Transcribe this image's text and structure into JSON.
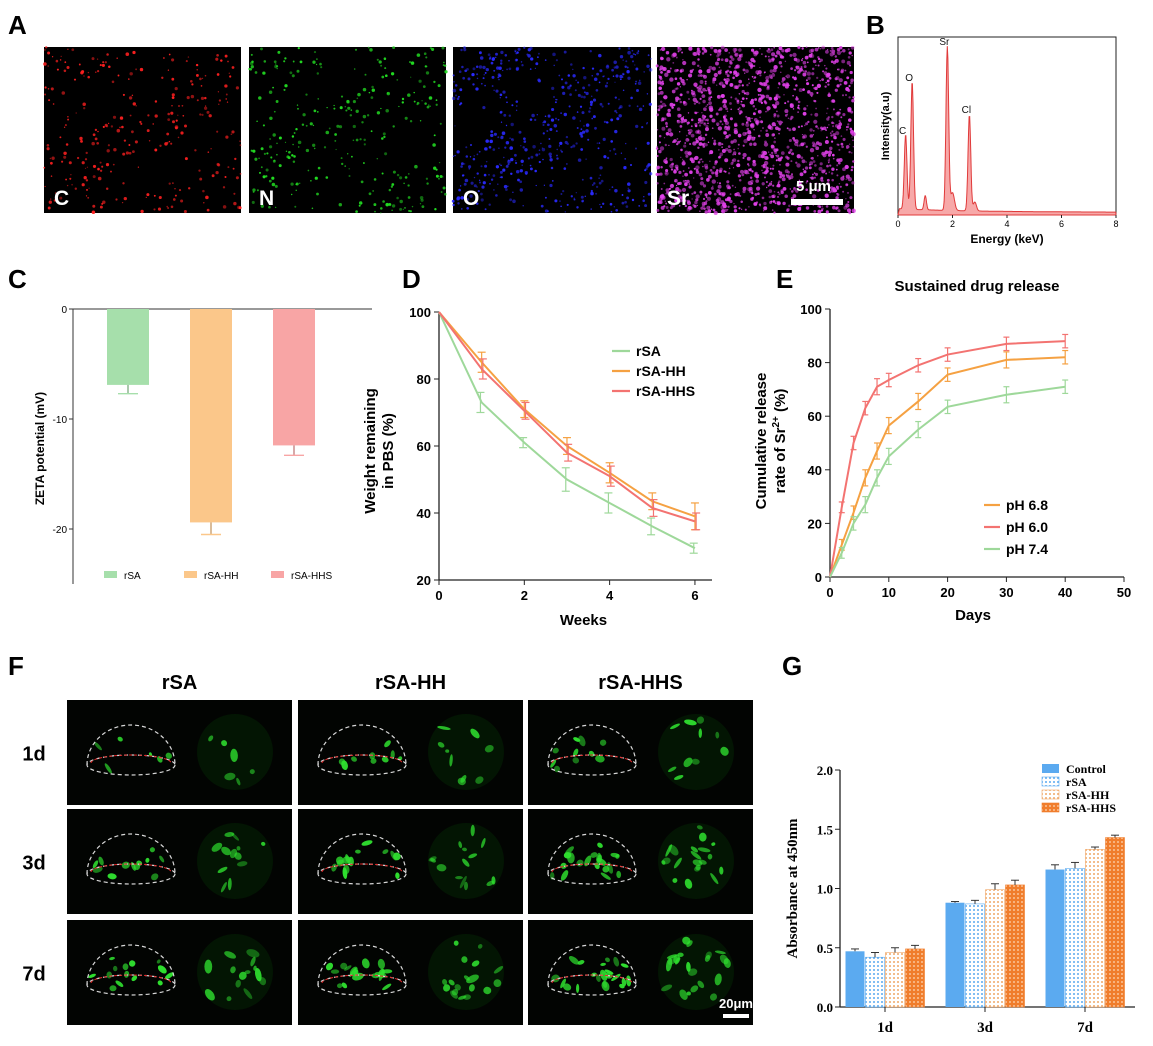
{
  "panels": {
    "a": {
      "letter": "A",
      "elements": [
        "C",
        "N",
        "O",
        "Sr"
      ],
      "element_colors": [
        "#ff2020",
        "#22dd22",
        "#2a2aff",
        "#e040e8"
      ],
      "scale_bar": "5 μm"
    },
    "f": {
      "letter": "F",
      "columns": [
        "rSA",
        "rSA-HH",
        "rSA-HHS"
      ],
      "rows": [
        "1d",
        "3d",
        "7d"
      ],
      "scale_bar": "20μm"
    }
  },
  "chart_data": [
    {
      "id": "B",
      "type": "line",
      "title": "",
      "xlabel": "Energy (keV)",
      "ylabel": "Intensity(a.u)",
      "xlim": [
        0,
        8
      ],
      "xticks": [
        0,
        2,
        4,
        6,
        8
      ],
      "color": "#e03a3a",
      "peaks": [
        {
          "label": "C",
          "x": 0.28,
          "y": 0.42
        },
        {
          "label": "O",
          "x": 0.52,
          "y": 0.72
        },
        {
          "label": "Sr",
          "x": 1.81,
          "y": 0.92
        },
        {
          "label": "Cl",
          "x": 2.62,
          "y": 0.54
        }
      ]
    },
    {
      "id": "C",
      "type": "bar",
      "title": "",
      "xlabel": "",
      "ylabel": "ZETA potential (mV)",
      "ylim": [
        -25,
        0
      ],
      "yticks": [
        0,
        -10,
        -20
      ],
      "categories": [
        "rSA",
        "rSA-HH",
        "rSA-HHS"
      ],
      "values": [
        -6.9,
        -19.4,
        -12.4
      ],
      "errors": [
        0.8,
        1.1,
        0.9
      ],
      "colors": [
        "#a6dfab",
        "#fbc78a",
        "#f8a5a5"
      ],
      "legend": [
        "rSA",
        "rSA-HH",
        "rSA-HHS"
      ]
    },
    {
      "id": "D",
      "type": "line",
      "title": "",
      "xlabel": "Weeks",
      "ylabel": "Weight remaining in PBS (%)",
      "ylabel_lines": [
        "Weight remaining",
        "in PBS (%)"
      ],
      "xlim": [
        0,
        6.4
      ],
      "ylim": [
        20,
        100
      ],
      "xticks": [
        0,
        2,
        4,
        6
      ],
      "yticks": [
        20,
        40,
        60,
        80,
        100
      ],
      "x": [
        0,
        1,
        2,
        3,
        4,
        5,
        6
      ],
      "series": [
        {
          "name": "rSA",
          "color": "#9ed89a",
          "values": [
            100,
            73,
            61,
            50,
            43,
            36,
            29.5
          ],
          "errors": [
            0,
            3,
            1.5,
            3.5,
            3,
            2.5,
            1.5
          ]
        },
        {
          "name": "rSA-HH",
          "color": "#f5a142",
          "values": [
            100,
            85,
            71,
            60,
            52,
            43.5,
            39
          ],
          "errors": [
            0,
            3,
            2.5,
            2.5,
            3,
            2.5,
            4
          ]
        },
        {
          "name": "rSA-HHS",
          "color": "#f37371",
          "values": [
            100,
            83,
            70.5,
            58,
            51,
            41.5,
            37.5
          ],
          "errors": [
            0,
            3,
            2.5,
            2.5,
            3,
            2.5,
            2.5
          ]
        }
      ],
      "legend_position": "top-right"
    },
    {
      "id": "E",
      "type": "line",
      "title": "Sustained drug release",
      "xlabel": "Days",
      "ylabel": "Cumulative release rate of Sr2+ (%)",
      "ylabel_line1": "Cumulative release",
      "ylabel_line2_pre": "rate of Sr",
      "ylabel_sup": "2+",
      "ylabel_line2_post": " (%)",
      "xlim": [
        0,
        50
      ],
      "ylim": [
        0,
        100
      ],
      "xticks": [
        0,
        10,
        20,
        30,
        40,
        50
      ],
      "yticks": [
        0,
        20,
        40,
        60,
        80,
        100
      ],
      "x": [
        0,
        2,
        4,
        6,
        8,
        10,
        15,
        20,
        30,
        40
      ],
      "series": [
        {
          "name": "pH 6.8",
          "color": "#f5a142",
          "values": [
            0,
            12,
            24,
            37,
            47,
            56.5,
            65.5,
            75.5,
            81,
            82
          ],
          "errors": [
            0,
            2,
            2.5,
            3,
            3,
            3,
            3,
            2.5,
            3,
            2.5
          ]
        },
        {
          "name": "pH 6.0",
          "color": "#f37371",
          "values": [
            0,
            26,
            50,
            63,
            71,
            73.5,
            79,
            83,
            87,
            88
          ],
          "errors": [
            0,
            2,
            2.5,
            2.5,
            3,
            2.5,
            2.5,
            2.5,
            2.5,
            2.5
          ]
        },
        {
          "name": "pH 7.4",
          "color": "#9ed89a",
          "values": [
            0,
            9,
            20,
            27,
            37,
            45,
            55,
            63.5,
            68,
            71
          ],
          "errors": [
            0,
            2,
            2.5,
            3,
            3,
            3,
            3,
            2.5,
            3,
            2.5
          ]
        }
      ],
      "legend_position": "bottom-right"
    },
    {
      "id": "G",
      "type": "bar",
      "title": "",
      "xlabel": "",
      "ylabel": "Absorbance at 450nm",
      "ylim": [
        0,
        2.0
      ],
      "yticks": [
        "0.0",
        "0.5",
        "1.0",
        "1.5",
        "2.0"
      ],
      "categories": [
        "1d",
        "3d",
        "7d"
      ],
      "series": [
        {
          "name": "Control",
          "color": "#5baaf0",
          "pattern": "solid",
          "values": [
            0.47,
            0.88,
            1.16
          ],
          "errors": [
            0.02,
            0.01,
            0.04
          ]
        },
        {
          "name": "rSA",
          "color": "#5baaf0",
          "pattern": "dots",
          "values": [
            0.42,
            0.87,
            1.17
          ],
          "errors": [
            0.04,
            0.03,
            0.05
          ]
        },
        {
          "name": "rSA-HH",
          "color": "#f0a868",
          "pattern": "dots",
          "values": [
            0.46,
            0.99,
            1.33
          ],
          "errors": [
            0.04,
            0.05,
            0.02
          ]
        },
        {
          "name": "rSA-HHS",
          "color": "#f07d2c",
          "pattern": "solid",
          "values": [
            0.49,
            1.03,
            1.43
          ],
          "errors": [
            0.03,
            0.04,
            0.02
          ]
        }
      ],
      "legend_position": "top-right"
    }
  ]
}
